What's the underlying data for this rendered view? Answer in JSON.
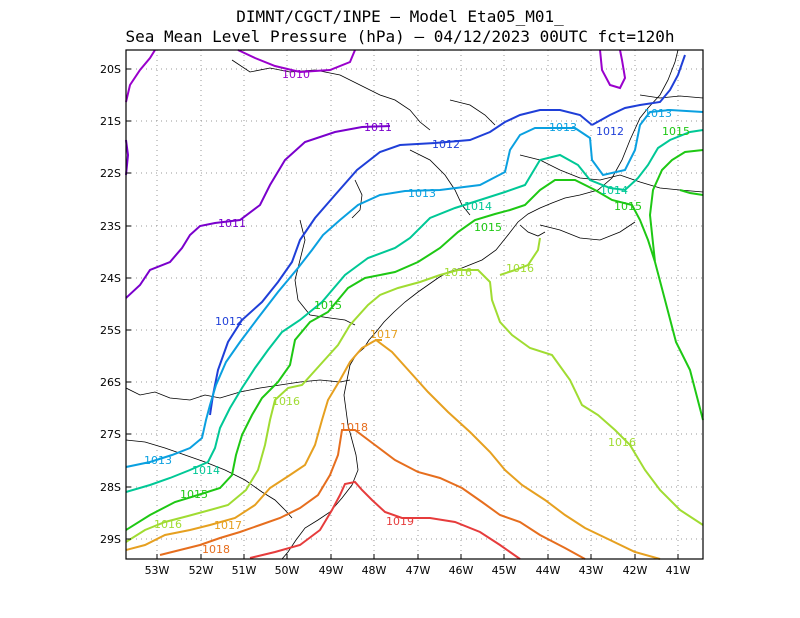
{
  "title": {
    "line1": "DIMNT/CGCT/INPE –  Model Eta05_M01_",
    "line2": "Sea Mean Level Pressure (hPa) – 04/12/2023 00UTC fct=120h"
  },
  "axes": {
    "lat_labels": [
      "20S",
      "21S",
      "22S",
      "23S",
      "24S",
      "25S",
      "26S",
      "27S",
      "28S",
      "29S"
    ],
    "lon_labels": [
      "53W",
      "52W",
      "51W",
      "50W",
      "49W",
      "48W",
      "47W",
      "46W",
      "45W",
      "44W",
      "43W",
      "42W",
      "41W"
    ]
  },
  "isobars": [
    {
      "level": "1010",
      "color": "#9a00cc"
    },
    {
      "level": "1011",
      "color": "#7a00cc"
    },
    {
      "level": "1012",
      "color": "#1f3fd8"
    },
    {
      "level": "1013",
      "color": "#0aa0e0"
    },
    {
      "level": "1014",
      "color": "#00c896"
    },
    {
      "level": "1015",
      "color": "#1ec814"
    },
    {
      "level": "1016",
      "color": "#a0dc32"
    },
    {
      "level": "1017",
      "color": "#e6a020"
    },
    {
      "level": "1018",
      "color": "#e66e1e"
    },
    {
      "level": "1019",
      "color": "#e63c3c"
    }
  ]
}
